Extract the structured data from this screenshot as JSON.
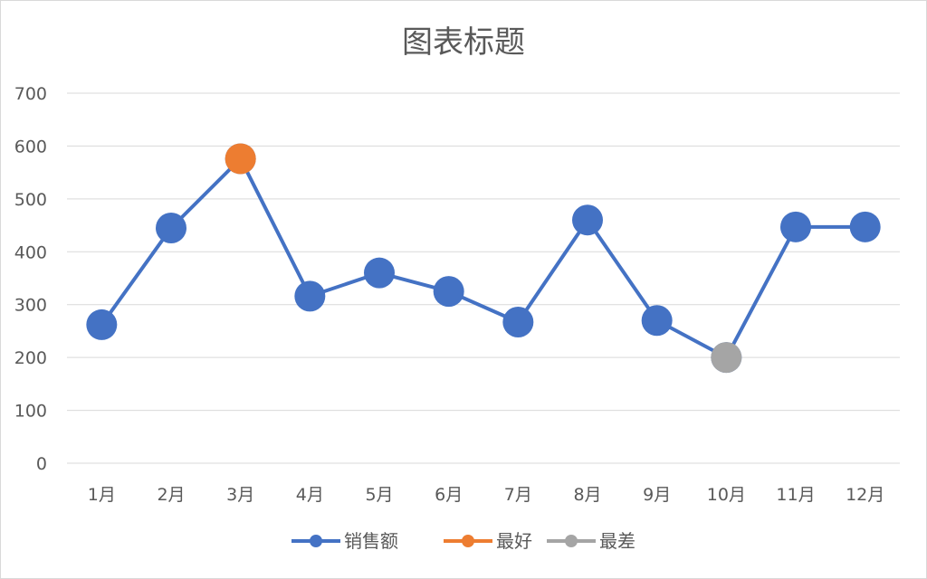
{
  "chart_data": {
    "type": "line",
    "title": "图表标题",
    "categories": [
      "1月",
      "2月",
      "3月",
      "4月",
      "5月",
      "6月",
      "7月",
      "8月",
      "9月",
      "10月",
      "11月",
      "12月"
    ],
    "ylim": [
      0,
      700
    ],
    "yticks": [
      "0",
      "100",
      "200",
      "300",
      "400",
      "500",
      "600",
      "700"
    ],
    "grid": true,
    "legend_position": "bottom",
    "series": [
      {
        "name": "销售额",
        "color": "#4472c4",
        "values": [
          262,
          445,
          576,
          316,
          360,
          325,
          267,
          460,
          270,
          200,
          447,
          447
        ]
      },
      {
        "name": "最好",
        "color": "#ed7d31",
        "values": [
          null,
          null,
          576,
          null,
          null,
          null,
          null,
          null,
          null,
          null,
          null,
          null
        ]
      },
      {
        "name": "最差",
        "color": "#a5a5a5",
        "values": [
          null,
          null,
          null,
          null,
          null,
          null,
          null,
          null,
          null,
          200,
          null,
          null
        ]
      }
    ]
  }
}
